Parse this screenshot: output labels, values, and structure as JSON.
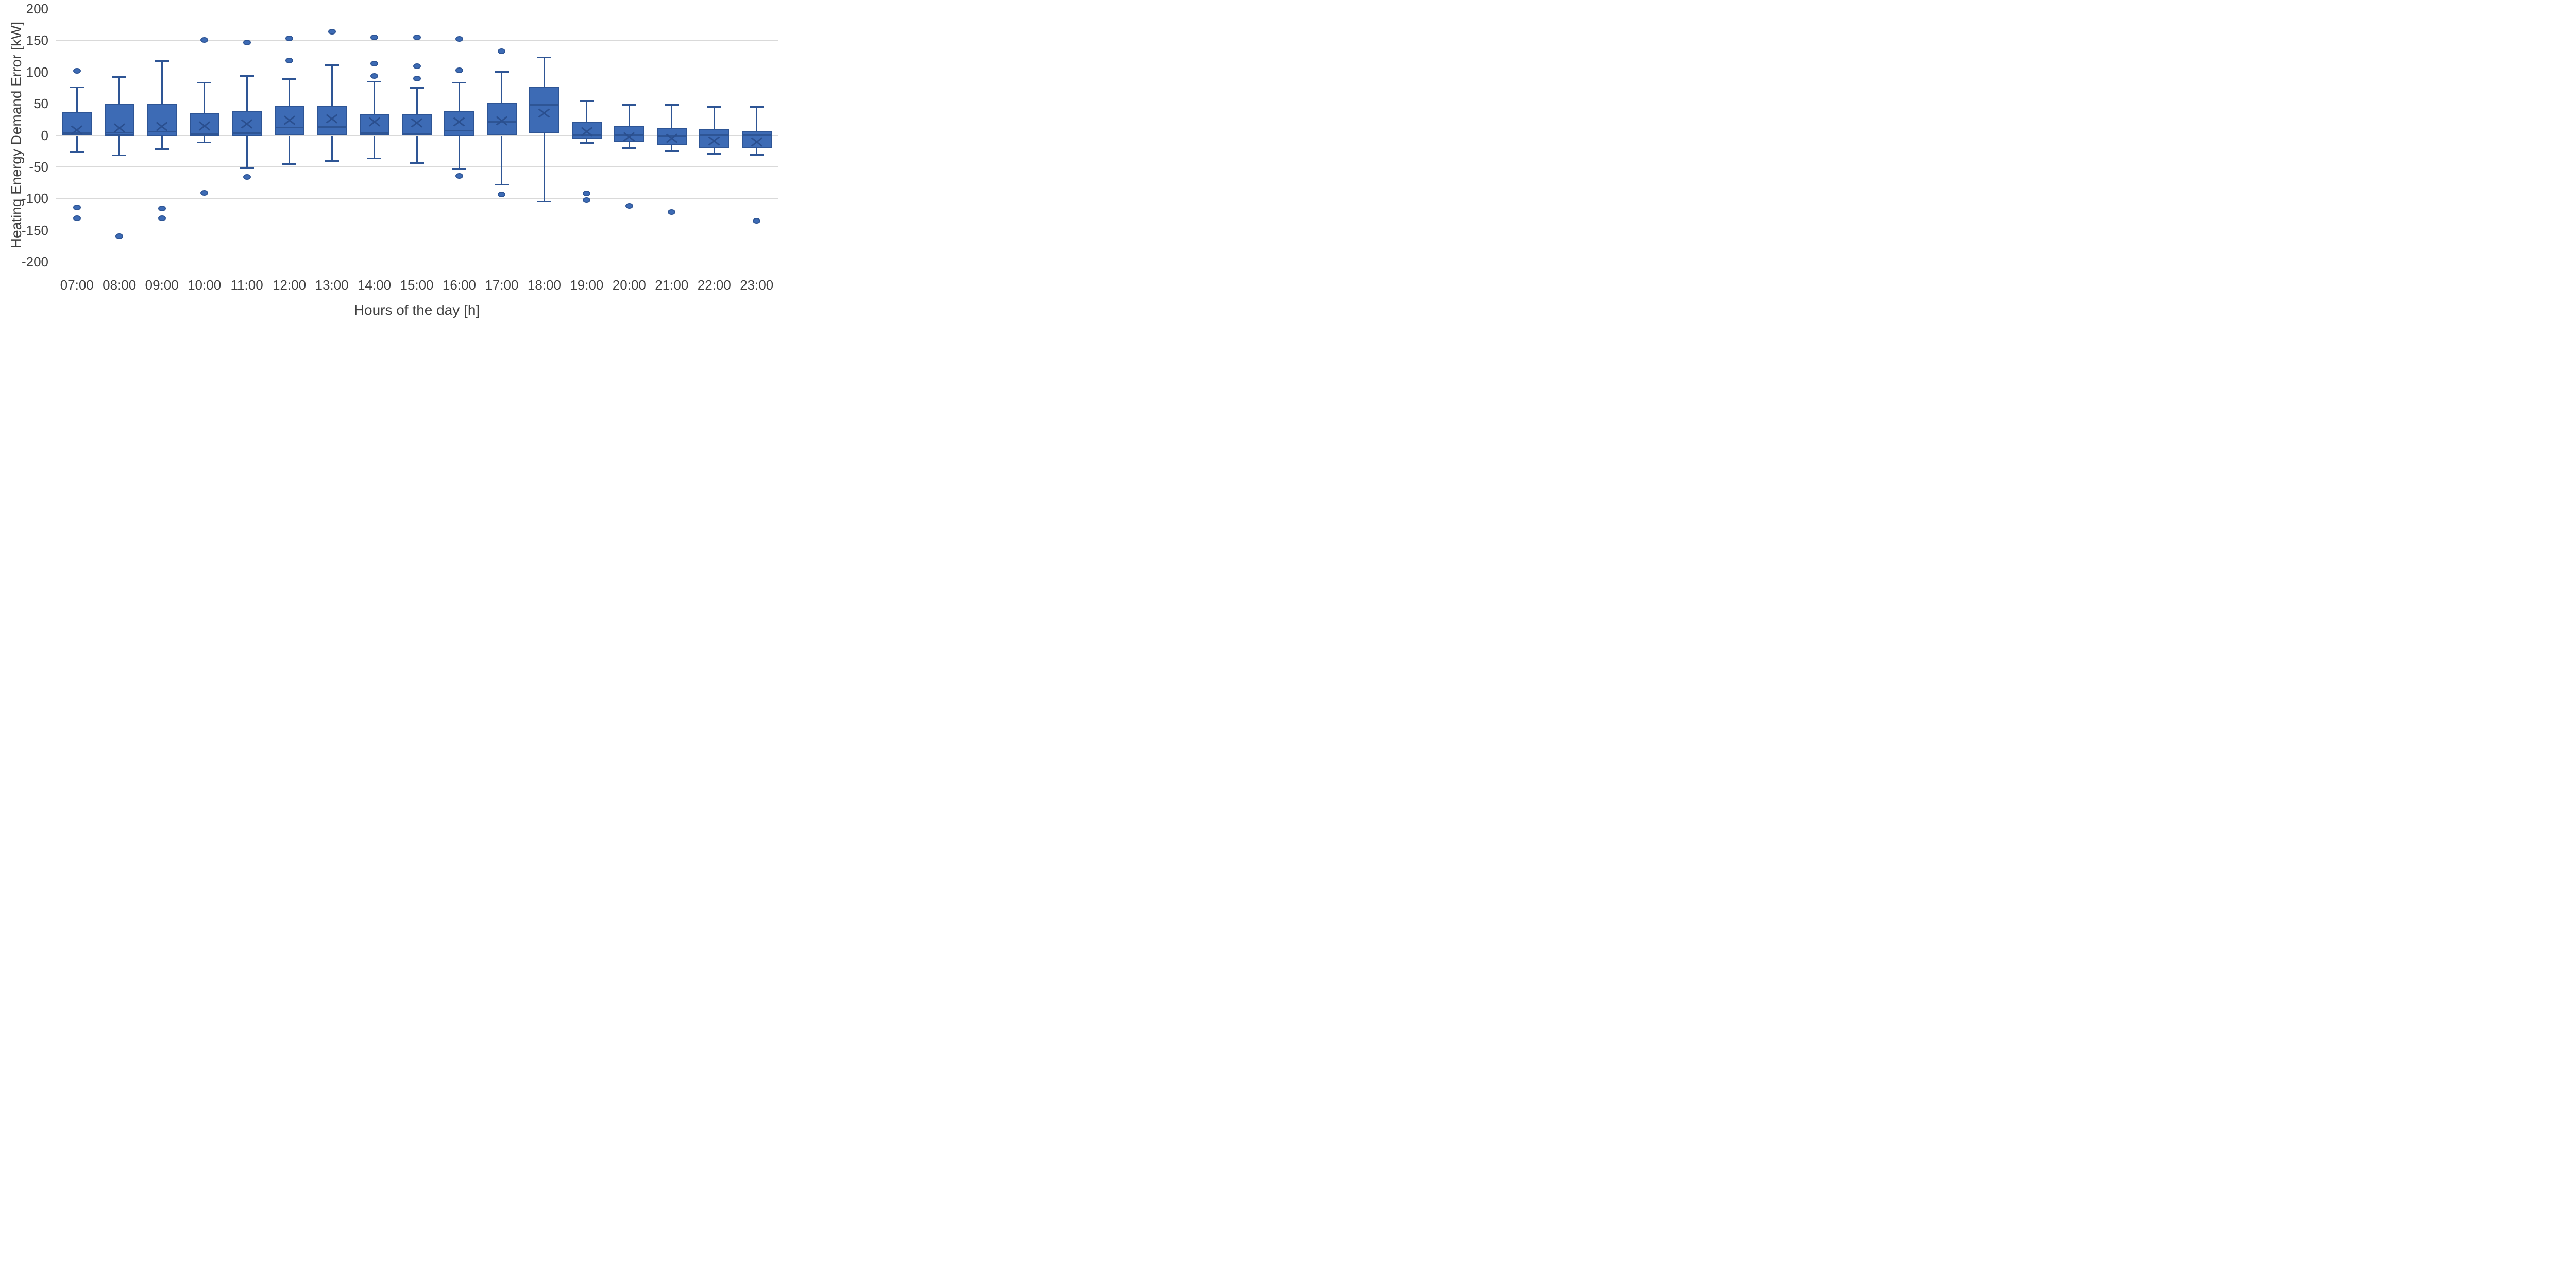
{
  "page": {
    "background": "#ffffff"
  },
  "chart_data": {
    "type": "boxplot",
    "title": "",
    "xlabel": "Hours of the day [h]",
    "ylabel": "Heating Energy Demand Error [kW]",
    "ylim": [
      -200,
      200
    ],
    "ytick_step": 50,
    "yticks": [
      200,
      150,
      100,
      50,
      0,
      -50,
      -100,
      -150,
      -200
    ],
    "grid": "horizontal-only",
    "legend": "none",
    "categories": [
      "07:00",
      "08:00",
      "09:00",
      "10:00",
      "11:00",
      "12:00",
      "13:00",
      "14:00",
      "15:00",
      "16:00",
      "17:00",
      "18:00",
      "19:00",
      "20:00",
      "21:00",
      "22:00",
      "23:00"
    ],
    "boxes": [
      {
        "category": "07:00",
        "whisker_low": -26,
        "q1": 0,
        "median": 3,
        "q3": 36,
        "whisker_high": 76,
        "mean": 9,
        "outliers": [
          102,
          -114,
          -131
        ]
      },
      {
        "category": "08:00",
        "whisker_low": -32,
        "q1": 0,
        "median": 4,
        "q3": 50,
        "whisker_high": 92,
        "mean": 13,
        "outliers": [
          -160
        ]
      },
      {
        "category": "09:00",
        "whisker_low": -22,
        "q1": -1,
        "median": 6,
        "q3": 49,
        "whisker_high": 117,
        "mean": 15,
        "outliers": [
          -116,
          -131
        ]
      },
      {
        "category": "10:00",
        "whisker_low": -11,
        "q1": -1,
        "median": 2,
        "q3": 35,
        "whisker_high": 83,
        "mean": 16,
        "outliers": [
          151,
          -91
        ]
      },
      {
        "category": "11:00",
        "whisker_low": -52,
        "q1": -1,
        "median": 3,
        "q3": 39,
        "whisker_high": 94,
        "mean": 19,
        "outliers": [
          147,
          -66
        ]
      },
      {
        "category": "12:00",
        "whisker_low": -46,
        "q1": 0,
        "median": 12,
        "q3": 46,
        "whisker_high": 89,
        "mean": 25,
        "outliers": [
          153,
          118
        ]
      },
      {
        "category": "13:00",
        "whisker_low": -41,
        "q1": 0,
        "median": 13,
        "q3": 46,
        "whisker_high": 111,
        "mean": 27,
        "outliers": [
          164
        ]
      },
      {
        "category": "14:00",
        "whisker_low": -37,
        "q1": 0,
        "median": 3,
        "q3": 34,
        "whisker_high": 85,
        "mean": 22,
        "outliers": [
          155,
          113,
          94
        ]
      },
      {
        "category": "15:00",
        "whisker_low": -44,
        "q1": 0,
        "median": 2,
        "q3": 34,
        "whisker_high": 75,
        "mean": 21,
        "outliers": [
          155,
          109,
          90
        ]
      },
      {
        "category": "16:00",
        "whisker_low": -54,
        "q1": -1,
        "median": 7,
        "q3": 38,
        "whisker_high": 83,
        "mean": 22,
        "outliers": [
          152,
          103,
          -64
        ]
      },
      {
        "category": "17:00",
        "whisker_low": -78,
        "q1": 0,
        "median": 21,
        "q3": 52,
        "whisker_high": 100,
        "mean": 24,
        "outliers": [
          133,
          -94
        ]
      },
      {
        "category": "18:00",
        "whisker_low": -105,
        "q1": 3,
        "median": 48,
        "q3": 76,
        "whisker_high": 123,
        "mean": 36,
        "outliers": []
      },
      {
        "category": "19:00",
        "whisker_low": -12,
        "q1": -5,
        "median": 0,
        "q3": 21,
        "whisker_high": 54,
        "mean": 7,
        "outliers": [
          -92,
          -103
        ]
      },
      {
        "category": "20:00",
        "whisker_low": -20,
        "q1": -11,
        "median": 0,
        "q3": 14,
        "whisker_high": 48,
        "mean": -1,
        "outliers": [
          -112
        ]
      },
      {
        "category": "21:00",
        "whisker_low": -25,
        "q1": -15,
        "median": -1,
        "q3": 12,
        "whisker_high": 48,
        "mean": -4,
        "outliers": [
          -121
        ]
      },
      {
        "category": "22:00",
        "whisker_low": -29,
        "q1": -20,
        "median": 0,
        "q3": 9,
        "whisker_high": 45,
        "mean": -8,
        "outliers": []
      },
      {
        "category": "23:00",
        "whisker_low": -31,
        "q1": -21,
        "median": 0,
        "q3": 7,
        "whisker_high": 45,
        "mean": -9,
        "outliers": [
          -135
        ]
      }
    ],
    "colors": {
      "box_fill": "#3D6BB5",
      "box_border": "#2E5595",
      "whisker": "#2E5595",
      "mean_marker": "#2A4F8F",
      "outlier_fill": "#3D6BB5",
      "outlier_border": "#2E5595",
      "gridline": "#D9D9D9",
      "axis_text": "#404040"
    }
  }
}
